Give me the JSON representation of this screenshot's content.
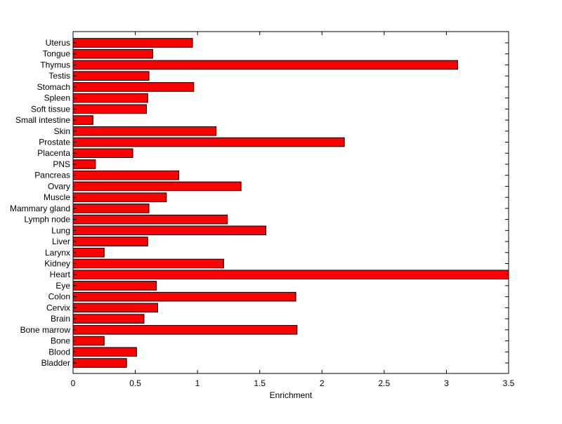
{
  "chart_data": {
    "type": "bar",
    "orientation": "horizontal",
    "title": "",
    "xlabel": "Enrichment",
    "ylabel": "",
    "xlim": [
      0,
      3.5
    ],
    "xticks": [
      "0",
      "0.5",
      "1",
      "1.5",
      "2",
      "2.5",
      "3",
      "3.5"
    ],
    "grid": false,
    "categories": [
      "Bladder",
      "Blood",
      "Bone",
      "Bone marrow",
      "Brain",
      "Cervix",
      "Colon",
      "Eye",
      "Heart",
      "Kidney",
      "Larynx",
      "Liver",
      "Lung",
      "Lymph node",
      "Mammary gland",
      "Muscle",
      "Ovary",
      "Pancreas",
      "PNS",
      "Placenta",
      "Prostate",
      "Skin",
      "Small intestine",
      "Soft tissue",
      "Spleen",
      "Stomach",
      "Testis",
      "Thymus",
      "Tongue",
      "Uterus"
    ],
    "values": [
      0.43,
      0.51,
      0.25,
      1.8,
      0.57,
      0.68,
      1.79,
      0.67,
      3.5,
      1.21,
      0.25,
      0.6,
      1.55,
      1.24,
      0.61,
      0.75,
      1.35,
      0.85,
      0.18,
      0.48,
      2.18,
      1.15,
      0.16,
      0.59,
      0.6,
      0.97,
      0.61,
      3.09,
      0.64,
      0.96
    ],
    "bar_color": "#ff0000",
    "edge_color": "#000000"
  }
}
